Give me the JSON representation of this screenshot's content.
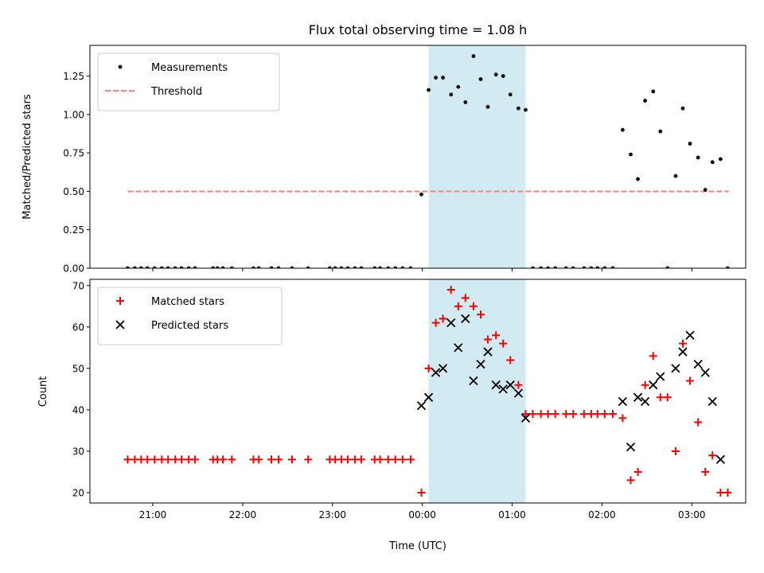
{
  "figure_title": "Flux total observing time = 1.08 h",
  "chart_data": [
    {
      "type": "scatter",
      "ylabel": "Matched/Predicted stars",
      "ylim": [
        0,
        1.45
      ],
      "yticks": [
        0.0,
        0.25,
        0.5,
        0.75,
        1.0,
        1.25
      ],
      "ytick_labels": [
        "0.00",
        "0.25",
        "0.50",
        "0.75",
        "1.00",
        "1.25"
      ],
      "xlim": [
        20.3,
        27.6
      ],
      "shaded_span": [
        24.07,
        25.15
      ],
      "shade_color": "#add8e6",
      "legend_position": "upper left",
      "threshold": {
        "name": "Threshold",
        "value": 0.5,
        "x_range": [
          20.72,
          27.41
        ],
        "color": "#ff8080"
      },
      "series": [
        {
          "name": "Measurements",
          "marker": "dot",
          "color": "#000000",
          "points": [
            [
              20.72,
              0
            ],
            [
              20.8,
              0
            ],
            [
              20.87,
              0
            ],
            [
              20.94,
              0
            ],
            [
              21.02,
              0
            ],
            [
              21.1,
              0
            ],
            [
              21.17,
              0
            ],
            [
              21.25,
              0
            ],
            [
              21.32,
              0
            ],
            [
              21.4,
              0
            ],
            [
              21.47,
              0
            ],
            [
              21.67,
              0
            ],
            [
              21.72,
              0
            ],
            [
              21.78,
              0
            ],
            [
              21.88,
              0
            ],
            [
              22.12,
              0
            ],
            [
              22.18,
              0
            ],
            [
              22.32,
              0
            ],
            [
              22.4,
              0
            ],
            [
              22.55,
              0
            ],
            [
              22.73,
              0
            ],
            [
              22.97,
              0
            ],
            [
              23.03,
              0
            ],
            [
              23.1,
              0
            ],
            [
              23.17,
              0
            ],
            [
              23.25,
              0
            ],
            [
              23.32,
              0
            ],
            [
              23.47,
              0
            ],
            [
              23.53,
              0
            ],
            [
              23.62,
              0
            ],
            [
              23.7,
              0
            ],
            [
              23.78,
              0
            ],
            [
              23.87,
              0
            ],
            [
              23.99,
              0.48
            ],
            [
              24.07,
              1.16
            ],
            [
              24.15,
              1.24
            ],
            [
              24.23,
              1.24
            ],
            [
              24.32,
              1.13
            ],
            [
              24.4,
              1.18
            ],
            [
              24.48,
              1.08
            ],
            [
              24.57,
              1.38
            ],
            [
              24.65,
              1.23
            ],
            [
              24.73,
              1.05
            ],
            [
              24.82,
              1.26
            ],
            [
              24.9,
              1.25
            ],
            [
              24.98,
              1.13
            ],
            [
              25.07,
              1.04
            ],
            [
              25.15,
              1.03
            ],
            [
              25.23,
              0
            ],
            [
              25.32,
              0
            ],
            [
              25.4,
              0
            ],
            [
              25.48,
              0
            ],
            [
              25.6,
              0
            ],
            [
              25.68,
              0
            ],
            [
              25.8,
              0
            ],
            [
              25.88,
              0
            ],
            [
              25.95,
              0
            ],
            [
              26.03,
              0
            ],
            [
              26.12,
              0
            ],
            [
              26.23,
              0.9
            ],
            [
              26.32,
              0.74
            ],
            [
              26.4,
              0.58
            ],
            [
              26.48,
              1.09
            ],
            [
              26.57,
              1.15
            ],
            [
              26.65,
              0.89
            ],
            [
              26.73,
              0
            ],
            [
              26.82,
              0.6
            ],
            [
              26.9,
              1.04
            ],
            [
              26.98,
              0.81
            ],
            [
              27.07,
              0.72
            ],
            [
              27.15,
              0.51
            ],
            [
              27.23,
              0.69
            ],
            [
              27.32,
              0.71
            ],
            [
              27.4,
              0
            ]
          ]
        }
      ]
    },
    {
      "type": "scatter",
      "ylabel": "Count",
      "xlabel": "Time (UTC)",
      "ylim": [
        17.5,
        71.5
      ],
      "yticks": [
        20,
        30,
        40,
        50,
        60,
        70
      ],
      "ytick_labels": [
        "20",
        "30",
        "40",
        "50",
        "60",
        "70"
      ],
      "xlim": [
        20.3,
        27.6
      ],
      "xticks": [
        21,
        22,
        23,
        24,
        25,
        26,
        27
      ],
      "xtick_labels": [
        "21:00",
        "22:00",
        "23:00",
        "00:00",
        "01:00",
        "02:00",
        "03:00"
      ],
      "shaded_span": [
        24.07,
        25.15
      ],
      "shade_color": "#add8e6",
      "legend_position": "upper left",
      "series": [
        {
          "name": "Matched stars",
          "marker": "plus",
          "color": "#ff0000",
          "points": [
            [
              20.72,
              28
            ],
            [
              20.8,
              28
            ],
            [
              20.87,
              28
            ],
            [
              20.94,
              28
            ],
            [
              21.02,
              28
            ],
            [
              21.1,
              28
            ],
            [
              21.17,
              28
            ],
            [
              21.25,
              28
            ],
            [
              21.32,
              28
            ],
            [
              21.4,
              28
            ],
            [
              21.47,
              28
            ],
            [
              21.67,
              28
            ],
            [
              21.72,
              28
            ],
            [
              21.78,
              28
            ],
            [
              21.88,
              28
            ],
            [
              22.12,
              28
            ],
            [
              22.18,
              28
            ],
            [
              22.32,
              28
            ],
            [
              22.4,
              28
            ],
            [
              22.55,
              28
            ],
            [
              22.73,
              28
            ],
            [
              22.97,
              28
            ],
            [
              23.03,
              28
            ],
            [
              23.1,
              28
            ],
            [
              23.17,
              28
            ],
            [
              23.25,
              28
            ],
            [
              23.32,
              28
            ],
            [
              23.47,
              28
            ],
            [
              23.53,
              28
            ],
            [
              23.62,
              28
            ],
            [
              23.7,
              28
            ],
            [
              23.78,
              28
            ],
            [
              23.87,
              28
            ],
            [
              23.99,
              20
            ],
            [
              24.07,
              50
            ],
            [
              24.15,
              61
            ],
            [
              24.23,
              62
            ],
            [
              24.32,
              69
            ],
            [
              24.4,
              65
            ],
            [
              24.48,
              67
            ],
            [
              24.57,
              65
            ],
            [
              24.65,
              63
            ],
            [
              24.73,
              57
            ],
            [
              24.82,
              58
            ],
            [
              24.9,
              56
            ],
            [
              24.98,
              52
            ],
            [
              25.07,
              46
            ],
            [
              25.15,
              39
            ],
            [
              25.23,
              39
            ],
            [
              25.32,
              39
            ],
            [
              25.4,
              39
            ],
            [
              25.48,
              39
            ],
            [
              25.6,
              39
            ],
            [
              25.68,
              39
            ],
            [
              25.8,
              39
            ],
            [
              25.88,
              39
            ],
            [
              25.95,
              39
            ],
            [
              26.03,
              39
            ],
            [
              26.12,
              39
            ],
            [
              26.23,
              38
            ],
            [
              26.32,
              23
            ],
            [
              26.4,
              25
            ],
            [
              26.48,
              46
            ],
            [
              26.57,
              53
            ],
            [
              26.65,
              43
            ],
            [
              26.73,
              43
            ],
            [
              26.82,
              30
            ],
            [
              26.9,
              56
            ],
            [
              26.98,
              47
            ],
            [
              27.07,
              37
            ],
            [
              27.15,
              25
            ],
            [
              27.23,
              29
            ],
            [
              27.32,
              20
            ],
            [
              27.4,
              20
            ]
          ]
        },
        {
          "name": "Predicted stars",
          "marker": "x",
          "color": "#000000",
          "points": [
            [
              23.99,
              41
            ],
            [
              24.07,
              43
            ],
            [
              24.15,
              49
            ],
            [
              24.23,
              50
            ],
            [
              24.32,
              61
            ],
            [
              24.4,
              55
            ],
            [
              24.48,
              62
            ],
            [
              24.57,
              47
            ],
            [
              24.65,
              51
            ],
            [
              24.73,
              54
            ],
            [
              24.82,
              46
            ],
            [
              24.9,
              45
            ],
            [
              24.98,
              46
            ],
            [
              25.07,
              44
            ],
            [
              25.15,
              38
            ],
            [
              26.23,
              42
            ],
            [
              26.32,
              31
            ],
            [
              26.4,
              43
            ],
            [
              26.48,
              42
            ],
            [
              26.57,
              46
            ],
            [
              26.65,
              48
            ],
            [
              26.82,
              50
            ],
            [
              26.9,
              54
            ],
            [
              26.98,
              58
            ],
            [
              27.07,
              51
            ],
            [
              27.15,
              49
            ],
            [
              27.23,
              42
            ],
            [
              27.32,
              28
            ]
          ]
        }
      ]
    }
  ]
}
